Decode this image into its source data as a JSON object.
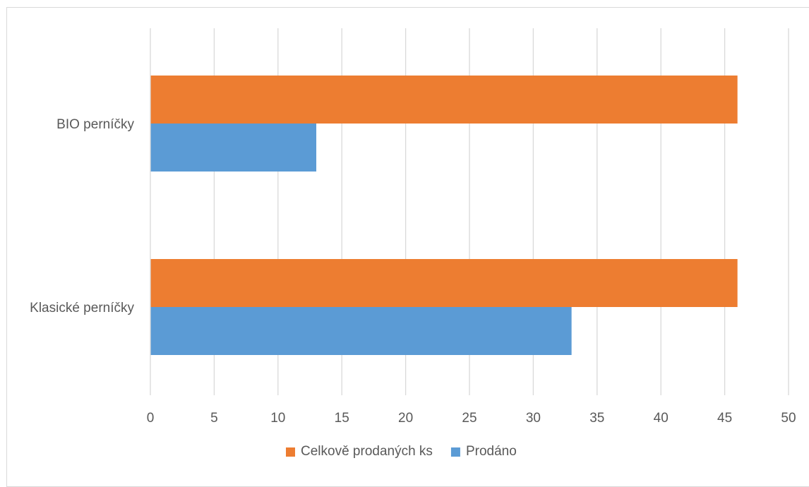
{
  "chart_data": {
    "type": "bar",
    "orientation": "horizontal",
    "categories": [
      "Klasické perníčky",
      "BIO perníčky"
    ],
    "series": [
      {
        "name": "Prodáno",
        "values": [
          33,
          13
        ],
        "color": "#5b9bd5"
      },
      {
        "name": "Celkově prodaných ks",
        "values": [
          46,
          46
        ],
        "color": "#ed7d31"
      }
    ],
    "xlim": [
      0,
      50
    ],
    "xticks": [
      0,
      5,
      10,
      15,
      20,
      25,
      30,
      35,
      40,
      45,
      50
    ],
    "grid": true,
    "legend_position": "bottom",
    "legend_order": [
      "Celkově prodaných ks",
      "Prodáno"
    ],
    "title": "",
    "xlabel": "",
    "ylabel": "",
    "colors": {
      "gridline": "#d9d9d9",
      "text": "#595959",
      "border": "#d9d9d9"
    }
  }
}
